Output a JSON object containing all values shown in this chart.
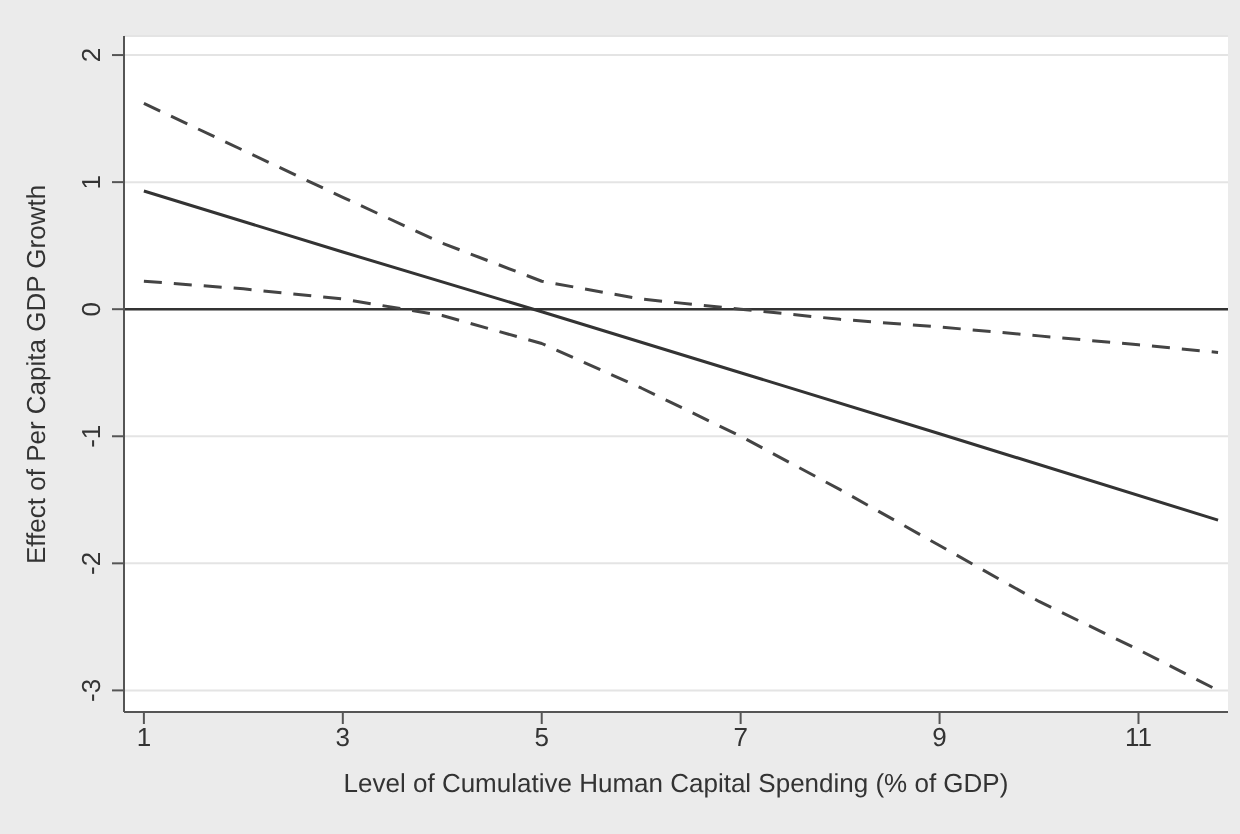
{
  "chart_data": {
    "type": "line",
    "xlabel": "Level of Cumulative Human Capital Spending (% of GDP)",
    "ylabel": "Effect of Per Capita GDP Growth",
    "xlim": [
      0.8,
      11.9
    ],
    "xticks": [
      1,
      3,
      5,
      7,
      9,
      11
    ],
    "ylim": [
      -3.17,
      2.15
    ],
    "yticks": [
      -3,
      -2,
      -1,
      0,
      1,
      2
    ],
    "grid": "y",
    "legend": false,
    "marker": "none",
    "series": [
      {
        "color": "#333333",
        "line_style": "solid",
        "x": [
          1,
          3,
          5,
          7,
          9,
          11.8
        ],
        "values": [
          0.93,
          0.45,
          -0.02,
          -0.5,
          -0.98,
          -1.66
        ]
      },
      {
        "color": "#444444",
        "line_style": "dashed",
        "x": [
          1,
          2,
          3,
          4,
          5,
          6,
          7,
          8,
          9,
          10,
          11,
          11.8
        ],
        "values": [
          1.62,
          1.25,
          0.88,
          0.52,
          0.22,
          0.08,
          0.0,
          -0.08,
          -0.14,
          -0.21,
          -0.28,
          -0.34
        ]
      },
      {
        "color": "#444444",
        "line_style": "dashed",
        "x": [
          1,
          2,
          3,
          4,
          5,
          6,
          7,
          8,
          9,
          10,
          11,
          11.8
        ],
        "values": [
          0.22,
          0.16,
          0.08,
          -0.05,
          -0.27,
          -0.62,
          -1.0,
          -1.42,
          -1.86,
          -2.3,
          -2.68,
          -3.0
        ]
      }
    ],
    "ref_lines": [
      {
        "axis": "y",
        "value": 0,
        "color": "#333333"
      }
    ]
  }
}
